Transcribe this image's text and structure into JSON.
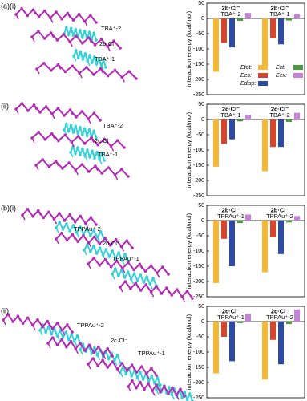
{
  "figure": {
    "panels": [
      {
        "label": "(a)(i)",
        "molecules": [
          "TBA⁺-2",
          "2b·Cl⁻",
          "TBA⁺-1"
        ]
      },
      {
        "label": "(ii)",
        "molecules": [
          "TBA⁺-2",
          "2c·Cl⁻",
          "TBA⁺-1"
        ]
      },
      {
        "label": "(b)(i)",
        "molecules": [
          "TPPAu⁺-2",
          "2b·Cl⁻",
          "TPPAu⁺-1"
        ]
      },
      {
        "label": "(ii)",
        "molecules": [
          "TPPAu⁺-2",
          "2c·Cl⁻",
          "TPPAu⁺-1"
        ]
      }
    ]
  },
  "chart_data": [
    {
      "type": "bar",
      "ylabel": "interaction energy (kcal/mol)",
      "ylim": [
        -250,
        50
      ],
      "yticks": [
        50,
        0,
        -50,
        -100,
        -150,
        -200,
        -250
      ],
      "categories": [
        [
          "2b·Cl⁻",
          "TBA⁺-2"
        ],
        [
          "2b·Cl⁻",
          "TBA⁺-1"
        ]
      ],
      "legend": true,
      "legend_corner": "lower-right",
      "series": [
        {
          "name": "Etot:",
          "color": "#f5b935",
          "values": [
            -175,
            -160
          ]
        },
        {
          "name": "Ees:",
          "color": "#d8452b",
          "values": [
            -80,
            -65
          ]
        },
        {
          "name": "Edisp:",
          "color": "#2c4aa6",
          "values": [
            -95,
            -85
          ]
        },
        {
          "name": "Ect:",
          "color": "#4c9a3e",
          "values": [
            -8,
            -7
          ]
        },
        {
          "name": "Eex:",
          "color": "#c681d8",
          "values": [
            18,
            15
          ]
        }
      ]
    },
    {
      "type": "bar",
      "ylabel": "interaction energy (kcal/mol)",
      "ylim": [
        -250,
        50
      ],
      "yticks": [
        50,
        0,
        -50,
        -100,
        -150,
        -200,
        -250
      ],
      "categories": [
        [
          "2c·Cl⁻",
          "TBA⁺-1"
        ],
        [
          "2c·Cl⁻",
          "TBA⁺-2"
        ]
      ],
      "series": [
        {
          "color": "#f5b935",
          "values": [
            -155,
            -170
          ]
        },
        {
          "color": "#d8452b",
          "values": [
            -80,
            -90
          ]
        },
        {
          "color": "#2c4aa6",
          "values": [
            -65,
            -90
          ]
        },
        {
          "color": "#4c9a3e",
          "values": [
            -6,
            -8
          ]
        },
        {
          "color": "#c681d8",
          "values": [
            15,
            22
          ]
        }
      ]
    },
    {
      "type": "bar",
      "ylabel": "interaction energy (kcal/mol)",
      "ylim": [
        -250,
        50
      ],
      "yticks": [
        50,
        0,
        -50,
        -100,
        -150,
        -200,
        -250
      ],
      "categories": [
        [
          "2b·Cl⁻",
          "TPPAu⁺-1"
        ],
        [
          "2b·Cl⁻",
          "TPPAu⁺-2"
        ]
      ],
      "series": [
        {
          "color": "#f5b935",
          "values": [
            -205,
            -170
          ]
        },
        {
          "color": "#d8452b",
          "values": [
            -60,
            -55
          ]
        },
        {
          "color": "#2c4aa6",
          "values": [
            -150,
            -110
          ]
        },
        {
          "color": "#4c9a3e",
          "values": [
            -8,
            -6
          ]
        },
        {
          "color": "#c681d8",
          "values": [
            20,
            15
          ]
        }
      ]
    },
    {
      "type": "bar",
      "ylabel": "interaction energy (kcal/mol)",
      "ylim": [
        -250,
        50
      ],
      "yticks": [
        50,
        0,
        -50,
        -100,
        -150,
        -200,
        -250
      ],
      "categories": [
        [
          "2c·Cl⁻",
          "TPPAu⁺-1"
        ],
        [
          "2c·Cl⁻",
          "TPPAu⁺-2"
        ]
      ],
      "series": [
        {
          "color": "#f5b935",
          "values": [
            -170,
            -190
          ]
        },
        {
          "color": "#d8452b",
          "values": [
            -50,
            -60
          ]
        },
        {
          "color": "#2c4aa6",
          "values": [
            -130,
            -140
          ]
        },
        {
          "color": "#4c9a3e",
          "values": [
            -5,
            -8
          ]
        },
        {
          "color": "#c681d8",
          "values": [
            25,
            40
          ]
        }
      ]
    }
  ]
}
